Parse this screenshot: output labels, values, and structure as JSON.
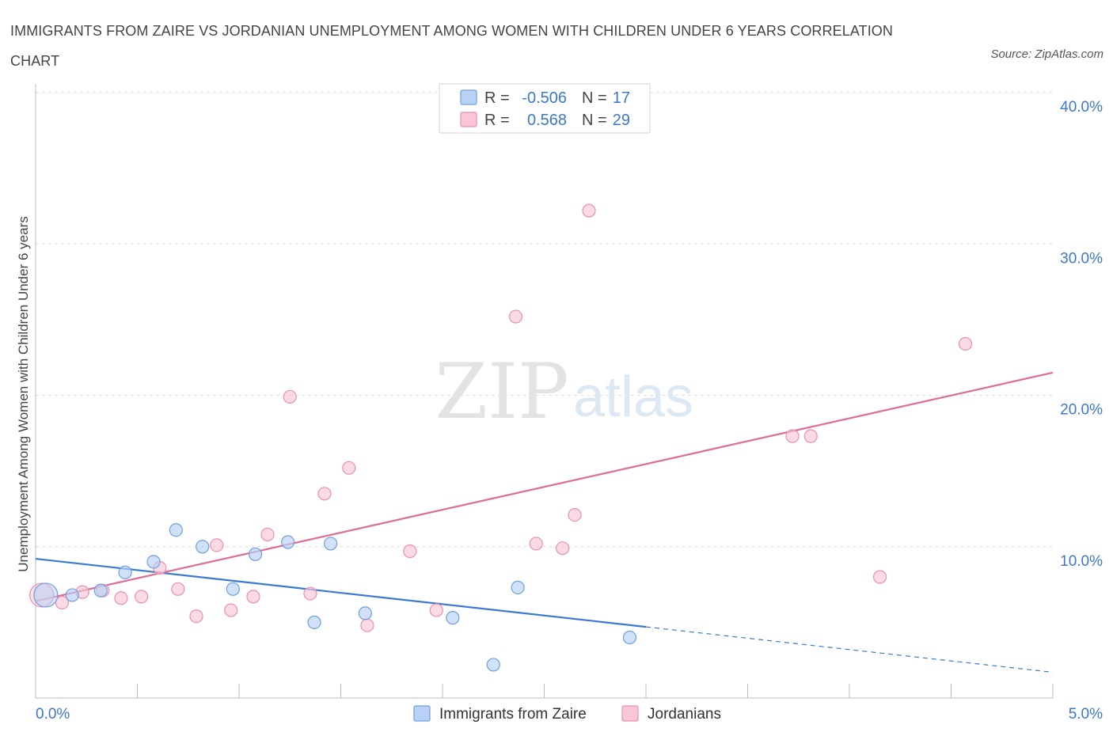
{
  "title": "IMMIGRANTS FROM ZAIRE VS JORDANIAN UNEMPLOYMENT AMONG WOMEN WITH CHILDREN UNDER 6 YEARS CORRELATION CHART",
  "source": "Source: ZipAtlas.com",
  "watermark": {
    "zip": "ZIP",
    "atlas": "atlas"
  },
  "colors": {
    "blue_fill": "#b8d1f5",
    "blue_stroke": "#6f9fe0",
    "blue_line": "#3a79d4",
    "pink_fill": "#f8c6d6",
    "pink_stroke": "#e891ad",
    "pink_line": "#e06b95",
    "tick_label": "#3d78c8",
    "grid": "#dddddd"
  },
  "legend_stats": [
    {
      "r_label": "R =",
      "r_value": "-0.506",
      "n_label": "N =",
      "n_value": "17",
      "color": "blue"
    },
    {
      "r_label": "R =",
      "r_value": "0.568",
      "n_label": "N =",
      "n_value": "29",
      "color": "pink"
    }
  ],
  "chart_data": {
    "type": "scatter",
    "title": "IMMIGRANTS FROM ZAIRE VS JORDANIAN UNEMPLOYMENT AMONG WOMEN WITH CHILDREN UNDER 6 YEARS CORRELATION CHART",
    "xlabel": "",
    "ylabel": "Unemployment Among Women with Children Under 6 years",
    "xlim": [
      0,
      5
    ],
    "ylim": [
      0,
      40
    ],
    "x_tick_labels": [
      "0.0%",
      "5.0%"
    ],
    "y_ticks": [
      10,
      20,
      30,
      40
    ],
    "y_tick_labels": [
      "10.0%",
      "20.0%",
      "30.0%",
      "40.0%"
    ],
    "grid": true,
    "legend_position": "bottom",
    "series": [
      {
        "name": "Immigrants from Zaire",
        "color": "blue",
        "points": [
          [
            0.05,
            6.8
          ],
          [
            0.18,
            6.8
          ],
          [
            0.32,
            7.1
          ],
          [
            0.44,
            8.3
          ],
          [
            0.58,
            9.0
          ],
          [
            0.69,
            11.1
          ],
          [
            0.82,
            10.0
          ],
          [
            0.97,
            7.2
          ],
          [
            1.08,
            9.5
          ],
          [
            1.24,
            10.3
          ],
          [
            1.37,
            5.0
          ],
          [
            1.45,
            10.2
          ],
          [
            1.62,
            5.6
          ],
          [
            2.05,
            5.3
          ],
          [
            2.25,
            2.2
          ],
          [
            2.37,
            7.3
          ],
          [
            2.92,
            4.0
          ]
        ],
        "trend": {
          "x": [
            0,
            3.0
          ],
          "y": [
            9.2,
            4.7
          ],
          "dashed_to": [
            5.0,
            1.7
          ]
        }
      },
      {
        "name": "Jordanians",
        "color": "pink",
        "points": [
          [
            0.03,
            6.8
          ],
          [
            0.13,
            6.3
          ],
          [
            0.23,
            7.0
          ],
          [
            0.33,
            7.1
          ],
          [
            0.42,
            6.6
          ],
          [
            0.52,
            6.7
          ],
          [
            0.61,
            8.6
          ],
          [
            0.7,
            7.2
          ],
          [
            0.79,
            5.4
          ],
          [
            0.89,
            10.1
          ],
          [
            0.96,
            5.8
          ],
          [
            1.07,
            6.7
          ],
          [
            1.14,
            10.8
          ],
          [
            1.25,
            19.9
          ],
          [
            1.35,
            6.9
          ],
          [
            1.42,
            13.5
          ],
          [
            1.54,
            15.2
          ],
          [
            1.63,
            4.8
          ],
          [
            1.84,
            9.7
          ],
          [
            1.97,
            5.8
          ],
          [
            2.36,
            25.2
          ],
          [
            2.46,
            10.2
          ],
          [
            2.59,
            9.9
          ],
          [
            2.65,
            12.1
          ],
          [
            2.72,
            32.2
          ],
          [
            3.72,
            17.3
          ],
          [
            3.81,
            17.3
          ],
          [
            4.15,
            8.0
          ],
          [
            4.57,
            23.4
          ]
        ],
        "trend": {
          "x": [
            0,
            5.0
          ],
          "y": [
            6.4,
            21.5
          ]
        }
      }
    ]
  }
}
